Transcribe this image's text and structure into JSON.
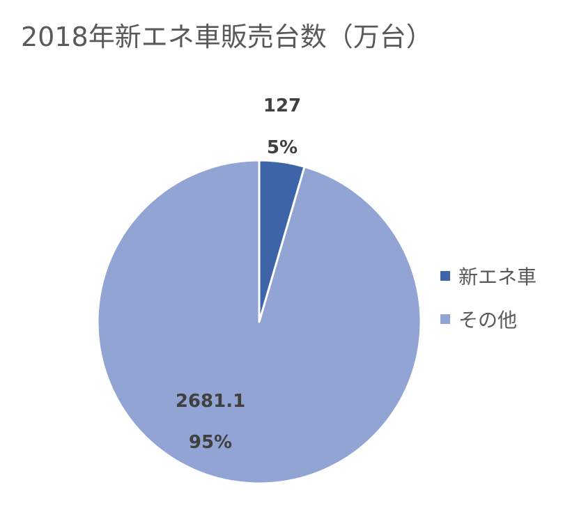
{
  "chart_data": {
    "type": "pie",
    "title": "2018年新エネ車販売台数（万台）",
    "categories": [
      "新エネ車",
      "その他"
    ],
    "values": [
      127,
      2681.1
    ],
    "value_labels": [
      "127",
      "2681.1"
    ],
    "percent_labels": [
      "5%",
      "95%"
    ],
    "colors": [
      "#3d64a8",
      "#91a4d4"
    ],
    "start_angle_deg": 0,
    "direction": "clockwise",
    "legend_position": "right"
  }
}
